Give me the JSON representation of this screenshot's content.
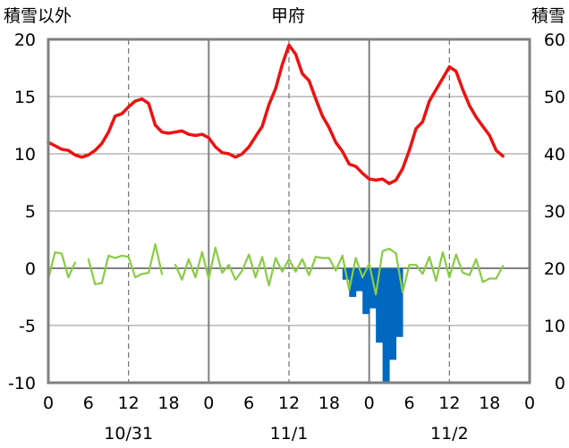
{
  "chart_data": {
    "type": "bar+line",
    "title": "甲府",
    "left_axis_label": "積雪以外",
    "right_axis_label": "積雪",
    "left_ylim": [
      -10,
      20
    ],
    "left_ticks": [
      "20",
      "15",
      "10",
      "5",
      "0",
      "-5",
      "-10"
    ],
    "right_ylim": [
      0,
      60
    ],
    "right_ticks": [
      "60",
      "50",
      "40",
      "30",
      "20",
      "10",
      "0"
    ],
    "x_tick_labels": [
      "0",
      "6",
      "12",
      "18",
      "0",
      "6",
      "12",
      "18",
      "0",
      "6",
      "12",
      "18",
      "0"
    ],
    "date_labels": [
      "10/31",
      "11/1",
      "11/2"
    ],
    "grid": true,
    "colors": {
      "temperature": "#ee1111",
      "green_series": "#88cc44",
      "negative_bars": "#0068c0",
      "positive_bars": "#ffbb00",
      "frame": "#808080"
    },
    "temperature": [
      11.0,
      10.7,
      10.4,
      10.3,
      9.9,
      9.7,
      9.9,
      10.3,
      10.9,
      11.9,
      13.3,
      13.5,
      14.1,
      14.6,
      14.8,
      14.4,
      12.5,
      11.9,
      11.8,
      11.9,
      12.0,
      11.7,
      11.6,
      11.7,
      11.4,
      10.6,
      10.1,
      10.0,
      9.7,
      10.0,
      10.6,
      11.5,
      12.4,
      14.3,
      15.7,
      17.8,
      19.5,
      18.7,
      17.0,
      16.4,
      14.8,
      13.3,
      12.3,
      11.0,
      10.2,
      9.1,
      8.9,
      8.3,
      7.8,
      7.7,
      7.8,
      7.4,
      7.7,
      8.7,
      10.3,
      12.2,
      12.8,
      14.6,
      15.6,
      16.6,
      17.6,
      17.2,
      15.6,
      14.2,
      13.2,
      12.4,
      11.6,
      10.3,
      9.8
    ],
    "green_series": [
      -0.9,
      1.4,
      1.3,
      -0.8,
      0.5,
      null,
      0.8,
      -1.4,
      -1.3,
      1.1,
      0.9,
      1.1,
      1.0,
      -0.8,
      -0.5,
      -0.4,
      2.1,
      -0.5,
      null,
      0.3,
      -1.0,
      0.8,
      -0.8,
      1.4,
      -0.9,
      1.8,
      -0.4,
      0.3,
      -1.0,
      -0.2,
      1.2,
      -0.8,
      1.0,
      -1.5,
      0.9,
      -0.3,
      0.8,
      -0.3,
      0.8,
      -0.6,
      1.0,
      0.9,
      0.9,
      -0.2,
      1.1,
      -1.9,
      0.9,
      -0.8,
      0.4,
      -2.3,
      1.5,
      1.7,
      1.3,
      -2.1,
      0.3,
      0.3,
      -0.5,
      1.0,
      -1.1,
      1.4,
      -0.8,
      1.2,
      -0.4,
      -0.6,
      0.8,
      -1.2,
      -0.9,
      -0.9,
      0.2
    ],
    "negative_bars": [
      0,
      0,
      0,
      0,
      0,
      0,
      0,
      0,
      0,
      0,
      0,
      0,
      0,
      0,
      0,
      0,
      0,
      0,
      0,
      0,
      0,
      0,
      0,
      0,
      0,
      0,
      0,
      0,
      0,
      0,
      0,
      0,
      0,
      0,
      0,
      0,
      0,
      0,
      0,
      0,
      0,
      0,
      0,
      0,
      -1,
      -2.5,
      -2,
      -4,
      -3.5,
      -6.5,
      -10,
      -8,
      -6,
      0,
      0,
      0,
      0,
      0,
      0,
      0,
      0,
      0,
      0,
      0,
      0,
      0,
      0,
      0,
      0
    ],
    "snow_depth_cm": [
      0,
      0,
      0,
      0,
      0,
      0,
      0,
      0,
      0,
      0,
      0,
      0,
      0,
      0,
      0,
      0,
      0,
      0,
      0,
      0,
      0,
      0,
      0,
      0,
      0,
      0,
      0,
      0,
      0,
      0,
      0,
      0,
      0,
      0,
      0,
      0,
      0,
      0,
      0,
      0,
      0,
      0,
      0,
      0,
      0,
      0,
      0,
      0,
      0,
      0,
      0,
      0,
      0,
      0,
      0,
      0,
      0,
      0,
      0,
      0,
      0,
      0,
      0,
      0,
      0,
      0,
      0,
      0,
      0
    ]
  }
}
